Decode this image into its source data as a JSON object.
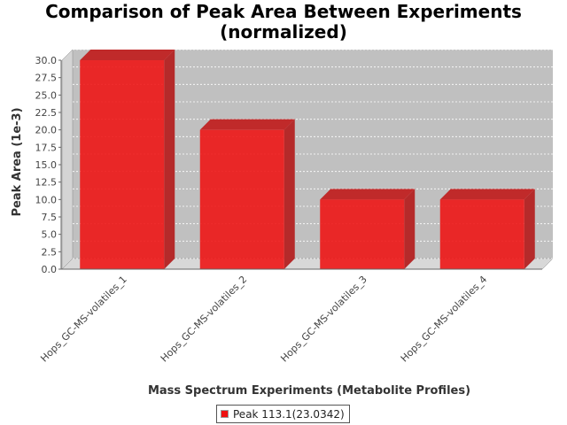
{
  "chart_data": {
    "type": "bar",
    "title_line1": "Comparison of Peak Area Between Experiments",
    "title_line2": "(normalized)",
    "xlabel": "Mass Spectrum Experiments (Metabolite Profiles)",
    "ylabel": "Peak Area (1e-3)",
    "categories": [
      "Hops_GC-MS-volatiles_1",
      "Hops_GC-MS-volatiles_2",
      "Hops_GC-MS-volatiles_3",
      "Hops_GC-MS-volatiles_4"
    ],
    "series": [
      {
        "name": "Peak 113.1(23.0342)",
        "values": [
          30.0,
          20.0,
          10.0,
          10.0
        ],
        "color": "#ee1111"
      }
    ],
    "ylim": [
      0,
      30
    ],
    "yticks": [
      "0.0",
      "2.5",
      "5.0",
      "7.5",
      "10.0",
      "12.5",
      "15.0",
      "17.5",
      "20.0",
      "22.5",
      "25.0",
      "27.5",
      "30.0"
    ],
    "grid": true,
    "legend_position": "bottom-center",
    "plot_background": "#c0c0c0"
  }
}
